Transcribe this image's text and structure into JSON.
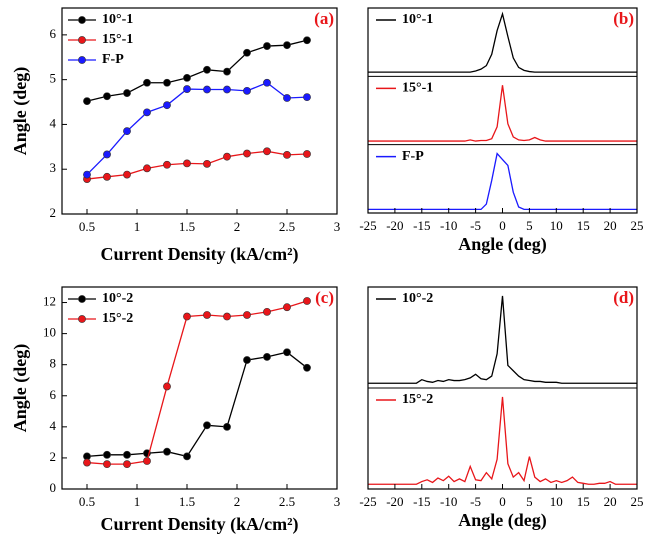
{
  "chart_data": [
    {
      "type": "line",
      "panel_label": "(a)",
      "xlabel": "Current Density (kA/cm²)",
      "ylabel": "Angle (deg)",
      "legend": "upper left",
      "x": [
        0.5,
        0.7,
        0.9,
        1.1,
        1.3,
        1.5,
        1.7,
        1.9,
        2.1,
        2.3,
        2.5,
        2.7
      ],
      "xlim": [
        0.25,
        3.0
      ],
      "xticks": [
        0.5,
        1.0,
        1.5,
        2.0,
        2.5,
        3.0
      ],
      "ylim": [
        2,
        6.6
      ],
      "yticks": [
        2,
        3,
        4,
        5,
        6
      ],
      "series": [
        {
          "name": "10°-1",
          "color": "#000000",
          "values": [
            4.52,
            4.63,
            4.7,
            4.93,
            4.93,
            5.04,
            5.22,
            5.18,
            5.6,
            5.75,
            5.77,
            5.88
          ]
        },
        {
          "name": "15°-1",
          "color": "#e8161a",
          "values": [
            2.78,
            2.83,
            2.88,
            3.02,
            3.1,
            3.13,
            3.12,
            3.28,
            3.35,
            3.4,
            3.32,
            3.34
          ]
        },
        {
          "name": "F-P",
          "color": "#1a1aff",
          "values": [
            2.88,
            3.33,
            3.85,
            4.27,
            4.43,
            4.79,
            4.78,
            4.78,
            4.75,
            4.93,
            4.59,
            4.61
          ]
        }
      ]
    },
    {
      "type": "spectra",
      "panel_label": "(b)",
      "xlabel": "Angle (deg)",
      "x": [
        -25,
        -24,
        -23,
        -22,
        -21,
        -20,
        -19,
        -18,
        -17,
        -16,
        -15,
        -14,
        -13,
        -12,
        -11,
        -10,
        -9,
        -8,
        -7,
        -6,
        -5,
        -4,
        -3,
        -2,
        -1,
        0,
        1,
        2,
        3,
        4,
        5,
        6,
        7,
        8,
        9,
        10,
        11,
        12,
        13,
        14,
        15,
        16,
        17,
        18,
        19,
        20,
        21,
        22,
        23,
        24,
        25
      ],
      "xlim": [
        -25,
        25
      ],
      "xticks": [
        -25,
        -20,
        -15,
        -10,
        -5,
        0,
        5,
        10,
        15,
        20,
        25
      ],
      "ylim": [
        0,
        1.1
      ],
      "series": [
        {
          "name": "10°-1",
          "color": "#000000",
          "values": [
            0.02,
            0.02,
            0.02,
            0.02,
            0.02,
            0.02,
            0.02,
            0.02,
            0.02,
            0.02,
            0.02,
            0.02,
            0.02,
            0.02,
            0.02,
            0.02,
            0.02,
            0.02,
            0.02,
            0.02,
            0.04,
            0.07,
            0.13,
            0.32,
            0.72,
            1.0,
            0.62,
            0.26,
            0.1,
            0.05,
            0.03,
            0.02,
            0.02,
            0.02,
            0.02,
            0.02,
            0.02,
            0.02,
            0.02,
            0.02,
            0.02,
            0.02,
            0.02,
            0.02,
            0.02,
            0.02,
            0.02,
            0.02,
            0.02,
            0.02,
            0.02
          ]
        },
        {
          "name": "15°-1",
          "color": "#e8161a",
          "values": [
            0.01,
            0.01,
            0.01,
            0.01,
            0.01,
            0.01,
            0.01,
            0.01,
            0.01,
            0.01,
            0.01,
            0.01,
            0.01,
            0.01,
            0.01,
            0.01,
            0.01,
            0.01,
            0.01,
            0.03,
            0.01,
            0.02,
            0.02,
            0.05,
            0.25,
            0.95,
            0.3,
            0.08,
            0.03,
            0.02,
            0.03,
            0.07,
            0.03,
            0.01,
            0.01,
            0.01,
            0.01,
            0.01,
            0.01,
            0.01,
            0.01,
            0.01,
            0.01,
            0.01,
            0.01,
            0.01,
            0.01,
            0.01,
            0.01,
            0.01,
            0.01
          ]
        },
        {
          "name": "F-P",
          "color": "#1a1aff",
          "values": [
            0.01,
            0.01,
            0.01,
            0.01,
            0.01,
            0.01,
            0.01,
            0.01,
            0.01,
            0.01,
            0.01,
            0.01,
            0.01,
            0.01,
            0.01,
            0.01,
            0.01,
            0.01,
            0.01,
            0.01,
            0.01,
            0.01,
            0.1,
            0.5,
            0.95,
            0.85,
            0.75,
            0.3,
            0.05,
            0.01,
            0.01,
            0.01,
            0.01,
            0.01,
            0.01,
            0.01,
            0.01,
            0.01,
            0.01,
            0.01,
            0.01,
            0.01,
            0.01,
            0.01,
            0.01,
            0.01,
            0.01,
            0.01,
            0.01,
            0.01,
            0.01
          ]
        }
      ]
    },
    {
      "type": "line",
      "panel_label": "(c)",
      "xlabel": "Current Density (kA/cm²)",
      "ylabel": "Angle (deg)",
      "legend": "upper left",
      "x": [
        0.5,
        0.7,
        0.9,
        1.1,
        1.3,
        1.5,
        1.7,
        1.9,
        2.1,
        2.3,
        2.5,
        2.7
      ],
      "xlim": [
        0.25,
        3.0
      ],
      "xticks": [
        0.5,
        1.0,
        1.5,
        2.0,
        2.5,
        3.0
      ],
      "ylim": [
        0,
        13
      ],
      "yticks": [
        0,
        2,
        4,
        6,
        8,
        10,
        12
      ],
      "series": [
        {
          "name": "10°-2",
          "color": "#000000",
          "values": [
            2.1,
            2.2,
            2.2,
            2.3,
            2.4,
            2.1,
            4.1,
            4.0,
            8.3,
            8.5,
            8.8,
            7.8
          ]
        },
        {
          "name": "15°-2",
          "color": "#e8161a",
          "values": [
            1.7,
            1.6,
            1.6,
            1.8,
            6.6,
            11.1,
            11.2,
            11.1,
            11.2,
            11.4,
            11.7,
            12.1
          ]
        }
      ]
    },
    {
      "type": "spectra",
      "panel_label": "(d)",
      "xlabel": "Angle (deg)",
      "x": [
        -25,
        -24,
        -23,
        -22,
        -21,
        -20,
        -19,
        -18,
        -17,
        -16,
        -15,
        -14,
        -13,
        -12,
        -11,
        -10,
        -9,
        -8,
        -7,
        -6,
        -5,
        -4,
        -3,
        -2,
        -1,
        0,
        1,
        2,
        3,
        4,
        5,
        6,
        7,
        8,
        9,
        10,
        11,
        12,
        13,
        14,
        15,
        16,
        17,
        18,
        19,
        20,
        21,
        22,
        23,
        24,
        25
      ],
      "xlim": [
        -25,
        25
      ],
      "xticks": [
        -25,
        -20,
        -15,
        -10,
        -5,
        0,
        5,
        10,
        15,
        20,
        25
      ],
      "ylim": [
        0,
        1.1
      ],
      "series": [
        {
          "name": "10°-2",
          "color": "#000000",
          "values": [
            0.02,
            0.02,
            0.02,
            0.02,
            0.02,
            0.02,
            0.02,
            0.02,
            0.02,
            0.02,
            0.06,
            0.04,
            0.03,
            0.05,
            0.04,
            0.06,
            0.05,
            0.05,
            0.06,
            0.08,
            0.12,
            0.07,
            0.06,
            0.1,
            0.35,
            1.0,
            0.22,
            0.16,
            0.1,
            0.06,
            0.05,
            0.04,
            0.04,
            0.03,
            0.03,
            0.03,
            0.02,
            0.02,
            0.02,
            0.02,
            0.02,
            0.02,
            0.02,
            0.02,
            0.02,
            0.02,
            0.02,
            0.02,
            0.02,
            0.02,
            0.02
          ]
        },
        {
          "name": "15°-2",
          "color": "#e8161a",
          "values": [
            0.02,
            0.02,
            0.02,
            0.02,
            0.02,
            0.02,
            0.02,
            0.02,
            0.02,
            0.02,
            0.05,
            0.07,
            0.04,
            0.09,
            0.06,
            0.11,
            0.05,
            0.08,
            0.05,
            0.22,
            0.07,
            0.06,
            0.15,
            0.08,
            0.3,
            1.0,
            0.25,
            0.1,
            0.15,
            0.06,
            0.33,
            0.1,
            0.05,
            0.08,
            0.04,
            0.06,
            0.04,
            0.06,
            0.1,
            0.04,
            0.03,
            0.02,
            0.02,
            0.03,
            0.03,
            0.05,
            0.02,
            0.02,
            0.02,
            0.02,
            0.02
          ]
        }
      ]
    }
  ]
}
